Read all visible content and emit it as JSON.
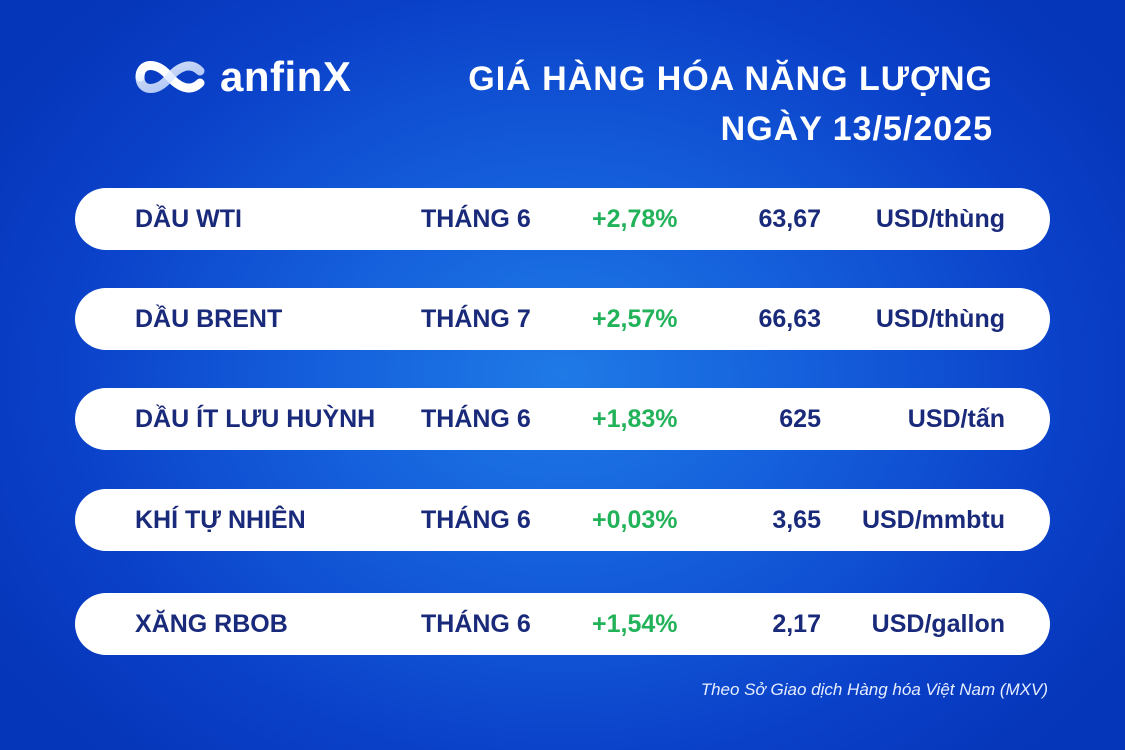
{
  "brand": {
    "name": "anfinX",
    "logo_icon": "infinity-swoosh-icon"
  },
  "title": {
    "line1": "GIÁ HÀNG HÓA NĂNG LƯỢNG",
    "line2": "NGÀY 13/5/2025"
  },
  "colors": {
    "background": "#1560dc",
    "text_dark": "#1a2a7a",
    "positive": "#22b35a"
  },
  "rows": [
    {
      "name": "DẦU WTI",
      "contract": "THÁNG 6",
      "change": "+2,78%",
      "price": "63,67",
      "unit": "USD/thùng"
    },
    {
      "name": "DẦU BRENT",
      "contract": "THÁNG 7",
      "change": "+2,57%",
      "price": "66,63",
      "unit": "USD/thùng"
    },
    {
      "name": "DẦU ÍT LƯU HUỲNH",
      "contract": "THÁNG 6",
      "change": "+1,83%",
      "price": "625",
      "unit": "USD/tấn"
    },
    {
      "name": "KHÍ TỰ NHIÊN",
      "contract": "THÁNG 6",
      "change": "+0,03%",
      "price": "3,65",
      "unit": "USD/mmbtu"
    },
    {
      "name": "XĂNG RBOB",
      "contract": "THÁNG 6",
      "change": "+1,54%",
      "price": "2,17",
      "unit": "USD/gallon"
    }
  ],
  "source": "Theo Sở Giao dịch Hàng hóa Việt Nam (MXV)"
}
